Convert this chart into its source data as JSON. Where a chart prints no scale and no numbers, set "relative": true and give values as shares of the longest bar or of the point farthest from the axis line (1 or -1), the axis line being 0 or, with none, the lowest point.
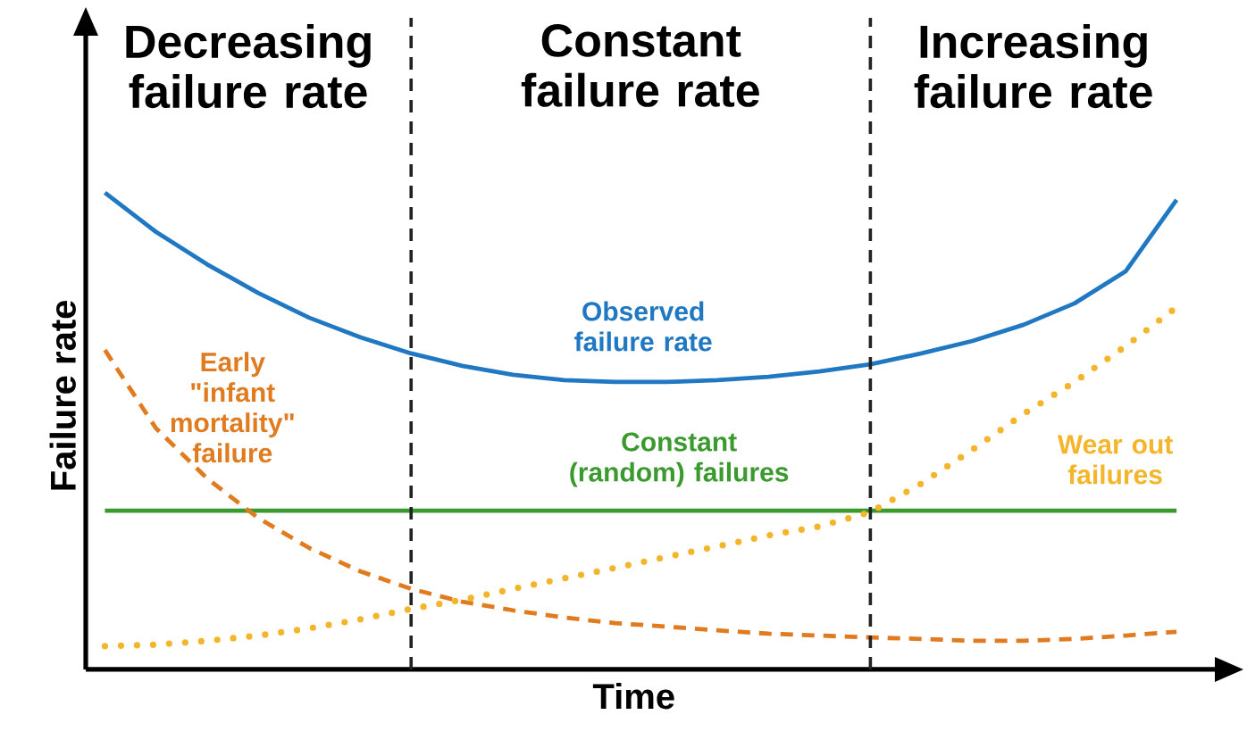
{
  "chart_data": {
    "type": "line",
    "xlabel": "Time",
    "ylabel": "Failure rate",
    "relative": true,
    "marker": "none",
    "categories": [
      null,
      null,
      null,
      null,
      null,
      null,
      null,
      null,
      null,
      null,
      null,
      null,
      null,
      null,
      null,
      null,
      null,
      null,
      null,
      null,
      null,
      null
    ],
    "annotations": [
      "Decreasing failure rate",
      "Constant failure rate",
      "Increasing failure rate"
    ],
    "series": [
      {
        "name": "Observed failure rate",
        "color": "#1f78c1",
        "line_style": "solid",
        "values": [
          1,
          0.918,
          0.85,
          0.79,
          0.738,
          0.697,
          0.663,
          0.637,
          0.618,
          0.607,
          0.603,
          0.603,
          0.607,
          0.614,
          0.625,
          0.64,
          0.663,
          0.689,
          0.723,
          0.768,
          0.835,
          0.985
        ]
      },
      {
        "name": "Constant (random) failures",
        "color": "#3a9a2e",
        "line_style": "solid",
        "values": [
          0.333,
          0.333,
          0.333,
          0.333,
          0.333,
          0.333,
          0.333,
          0.333,
          0.333,
          0.333,
          0.333,
          0.333,
          0.333,
          0.333,
          0.333,
          0.333,
          0.333,
          0.333,
          0.333,
          0.333,
          0.333,
          0.333
        ]
      },
      {
        "name": "Early \"infant mortality\" failure",
        "color": "#e07b20",
        "line_style": "dashed",
        "values": [
          0.67,
          0.506,
          0.401,
          0.318,
          0.255,
          0.206,
          0.169,
          0.142,
          0.124,
          0.109,
          0.097,
          0.09,
          0.082,
          0.075,
          0.071,
          0.067,
          0.064,
          0.06,
          0.06,
          0.064,
          0.071,
          0.079
        ]
      },
      {
        "name": "Wear out failures",
        "color": "#f5b52a",
        "line_style": "dotted",
        "values": [
          0.049,
          0.052,
          0.06,
          0.071,
          0.086,
          0.105,
          0.127,
          0.146,
          0.169,
          0.191,
          0.213,
          0.236,
          0.258,
          0.281,
          0.3,
          0.33,
          0.39,
          0.461,
          0.536,
          0.603,
          0.678,
          0.76
        ]
      }
    ]
  }
}
